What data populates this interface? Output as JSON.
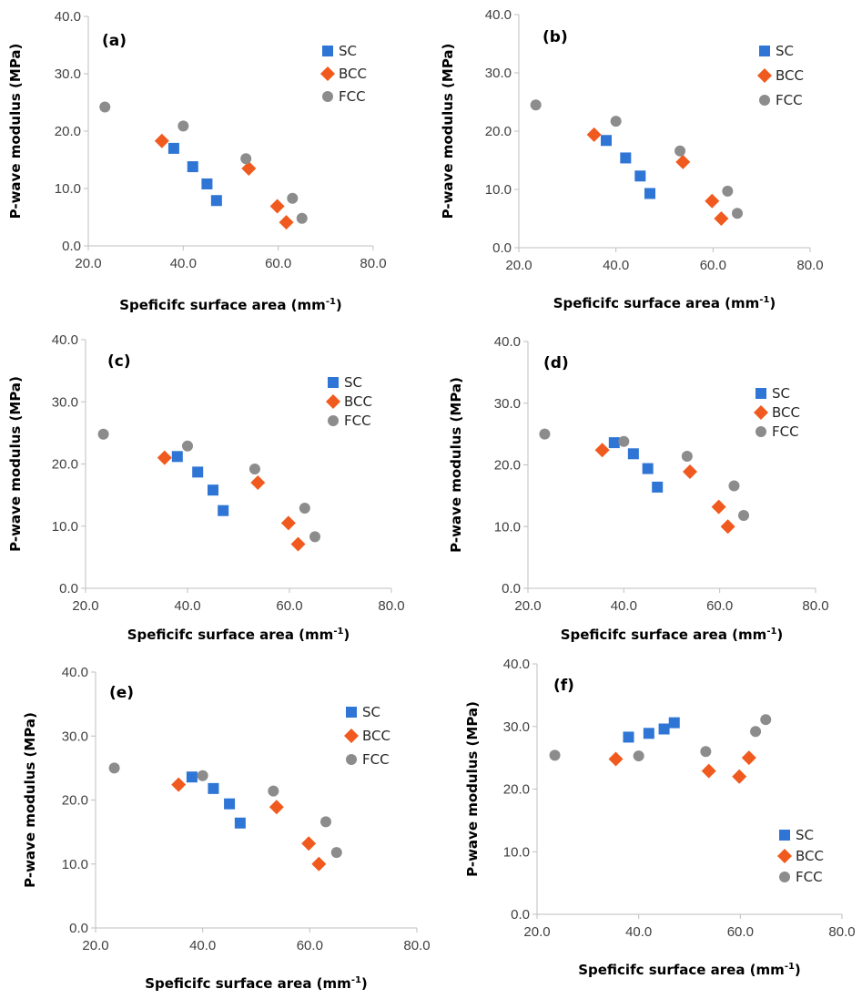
{
  "colors": {
    "SC": "#2E75D6",
    "BCC": "#F05A1E",
    "FCC": "#8C8C8C",
    "axis": "#BFBFBF"
  },
  "chart_data": [
    {
      "type": "scatter",
      "title": "(a)",
      "xlabel": "Speficifc surface area (mm",
      "xlabel_sup": "-1",
      "xlabel_end": ")",
      "ylabel": "P-wave modulus (MPa)",
      "xlim": [
        20,
        80
      ],
      "ylim": [
        0,
        40
      ],
      "xticks": [
        "20.0",
        "40.0",
        "60.0",
        "80.0"
      ],
      "yticks": [
        "0.0",
        "10.0",
        "20.0",
        "30.0",
        "40.0"
      ],
      "series": [
        {
          "name": "SC",
          "x": [
            38,
            42,
            45,
            47
          ],
          "y": [
            17.0,
            13.8,
            10.8,
            7.9
          ]
        },
        {
          "name": "BCC",
          "x": [
            35.5,
            53.8,
            59.8,
            61.7
          ],
          "y": [
            18.3,
            13.5,
            6.9,
            4.1
          ]
        },
        {
          "name": "FCC",
          "x": [
            23.5,
            40,
            53.2,
            63,
            65
          ],
          "y": [
            24.2,
            20.9,
            15.2,
            8.3,
            4.8
          ]
        }
      ]
    },
    {
      "type": "scatter",
      "title": "(b)",
      "xlabel": "Speficifc surface area (mm",
      "xlabel_sup": "-1",
      "xlabel_end": ")",
      "ylabel": "P-wave modulus (MPa)",
      "xlim": [
        20,
        80
      ],
      "ylim": [
        0,
        40
      ],
      "xticks": [
        "20.0",
        "40.0",
        "60.0",
        "80.0"
      ],
      "yticks": [
        "0.0",
        "10.0",
        "20.0",
        "30.0",
        "40.0"
      ],
      "series": [
        {
          "name": "SC",
          "x": [
            38,
            42,
            45,
            47
          ],
          "y": [
            18.4,
            15.4,
            12.3,
            9.3
          ]
        },
        {
          "name": "BCC",
          "x": [
            35.5,
            53.8,
            59.8,
            61.7
          ],
          "y": [
            19.4,
            14.7,
            8.0,
            5.0
          ]
        },
        {
          "name": "FCC",
          "x": [
            23.5,
            40,
            53.2,
            63,
            65
          ],
          "y": [
            24.5,
            21.7,
            16.6,
            9.7,
            5.9
          ]
        }
      ]
    },
    {
      "type": "scatter",
      "title": "(c)",
      "xlabel": "Speficifc surface area (mm",
      "xlabel_sup": "-1",
      "xlabel_end": ")",
      "ylabel": "P-wave modulus (MPa)",
      "xlim": [
        20,
        80
      ],
      "ylim": [
        0,
        40
      ],
      "xticks": [
        "20.0",
        "40.0",
        "60.0",
        "80.0"
      ],
      "yticks": [
        "0.0",
        "10.0",
        "20.0",
        "30.0",
        "40.0"
      ],
      "series": [
        {
          "name": "SC",
          "x": [
            38,
            42,
            45,
            47
          ],
          "y": [
            21.2,
            18.7,
            15.8,
            12.5
          ]
        },
        {
          "name": "BCC",
          "x": [
            35.5,
            53.8,
            59.8,
            61.7
          ],
          "y": [
            21.0,
            17.0,
            10.5,
            7.1
          ]
        },
        {
          "name": "FCC",
          "x": [
            23.5,
            40,
            53.2,
            63,
            65
          ],
          "y": [
            24.8,
            22.9,
            19.2,
            12.9,
            8.3
          ]
        }
      ]
    },
    {
      "type": "scatter",
      "title": "(d)",
      "xlabel": "Speficifc surface area (mm",
      "xlabel_sup": "-1",
      "xlabel_end": ")",
      "ylabel": "P-wave modulus (MPa)",
      "xlim": [
        20,
        80
      ],
      "ylim": [
        0,
        40
      ],
      "xticks": [
        "20.0",
        "40.0",
        "60.0",
        "80.0"
      ],
      "yticks": [
        "0.0",
        "10.0",
        "20.0",
        "30.0",
        "40.0"
      ],
      "series": [
        {
          "name": "SC",
          "x": [
            38,
            42,
            45,
            47
          ],
          "y": [
            23.6,
            21.8,
            19.4,
            16.4
          ]
        },
        {
          "name": "BCC",
          "x": [
            35.5,
            53.8,
            59.8,
            61.7
          ],
          "y": [
            22.4,
            18.9,
            13.2,
            10.0
          ]
        },
        {
          "name": "FCC",
          "x": [
            23.5,
            40,
            53.2,
            63,
            65
          ],
          "y": [
            25.0,
            23.8,
            21.4,
            16.6,
            11.8
          ]
        }
      ]
    },
    {
      "type": "scatter",
      "title": "(e)",
      "xlabel": "Speficifc surface area (mm",
      "xlabel_sup": "-1",
      "xlabel_end": ")",
      "ylabel": "P-wave modulus (MPa)",
      "xlim": [
        20,
        80
      ],
      "ylim": [
        0,
        40
      ],
      "xticks": [
        "20.0",
        "40.0",
        "60.0",
        "80.0"
      ],
      "yticks": [
        "0.0",
        "10.0",
        "20.0",
        "30.0",
        "40.0"
      ],
      "series": [
        {
          "name": "SC",
          "x": [
            38,
            42,
            45,
            47
          ],
          "y": [
            23.6,
            21.8,
            19.4,
            16.4
          ]
        },
        {
          "name": "BCC",
          "x": [
            35.5,
            53.8,
            59.8,
            61.7
          ],
          "y": [
            22.4,
            18.9,
            13.2,
            10.0
          ]
        },
        {
          "name": "FCC",
          "x": [
            23.5,
            40,
            53.2,
            63,
            65
          ],
          "y": [
            25.0,
            23.8,
            21.4,
            16.6,
            11.8
          ]
        }
      ]
    },
    {
      "type": "scatter",
      "title": "(f)",
      "xlabel": "Speficifc surface area (mm",
      "xlabel_sup": "-1",
      "xlabel_end": ")",
      "ylabel": "P-wave modulus (MPa)",
      "xlim": [
        20,
        80
      ],
      "ylim": [
        0,
        40
      ],
      "xticks": [
        "20.0",
        "40.0",
        "60.0",
        "80.0"
      ],
      "yticks": [
        "0.0",
        "10.0",
        "20.0",
        "30.0",
        "40.0"
      ],
      "series": [
        {
          "name": "SC",
          "x": [
            38,
            42,
            45,
            47
          ],
          "y": [
            28.3,
            28.9,
            29.6,
            30.6
          ]
        },
        {
          "name": "BCC",
          "x": [
            35.5,
            53.8,
            59.8,
            61.7
          ],
          "y": [
            24.8,
            22.9,
            22.0,
            25.0
          ]
        },
        {
          "name": "FCC",
          "x": [
            23.5,
            40,
            53.2,
            63,
            65
          ],
          "y": [
            25.4,
            25.3,
            26.0,
            29.2,
            31.1
          ]
        }
      ]
    }
  ]
}
